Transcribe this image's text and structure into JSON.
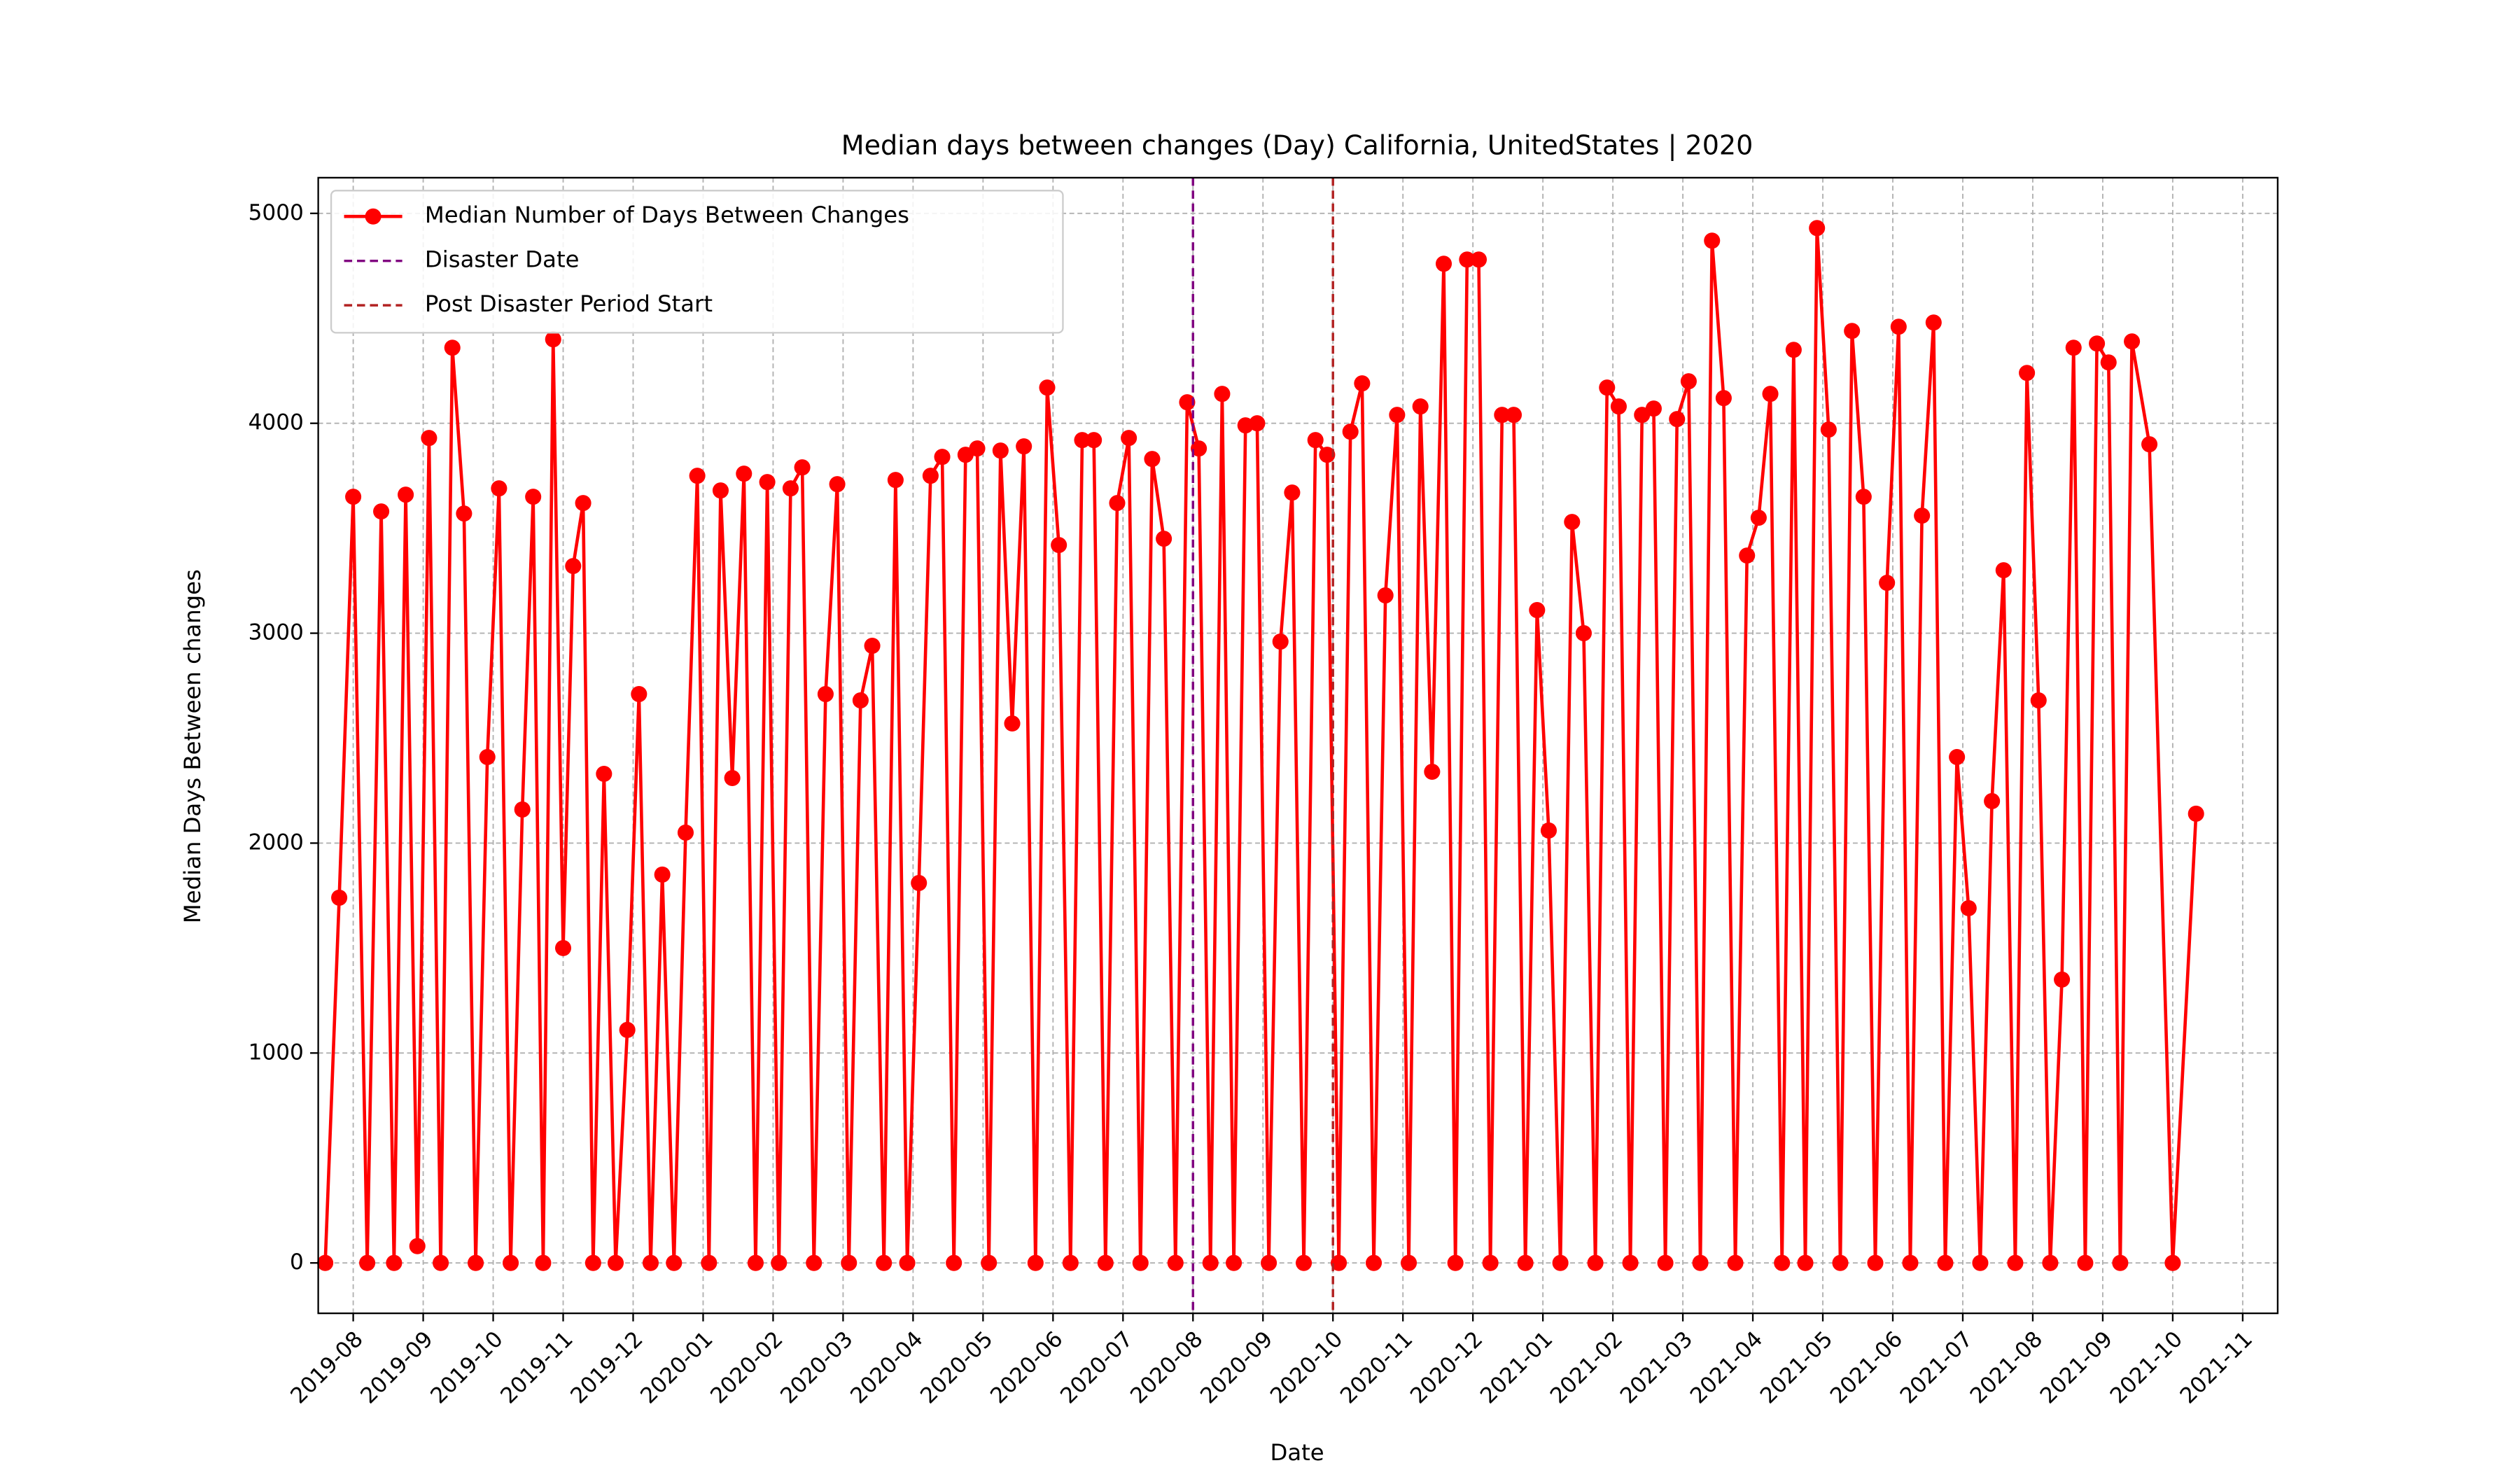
{
  "chart_data": {
    "type": "line",
    "title": "Median days between changes (Day) California, UnitedStates | 2020",
    "x_label": "Date",
    "y_label": "Median Days Between changes",
    "x": [
      "2019-08",
      "2019-08",
      "2019-08",
      "2019-08",
      "2019-08",
      "2019-09",
      "2019-09",
      "2019-09",
      "2019-09",
      "2019-09",
      "2019-09",
      "2019-10",
      "2019-10",
      "2019-10",
      "2019-10",
      "2019-10",
      "2019-10",
      "2019-11",
      "2019-11",
      "2019-11",
      "2019-11",
      "2019-11",
      "2019-11",
      "2019-11",
      "2019-12",
      "2019-12",
      "2019-12",
      "2019-12",
      "2019-12",
      "2019-12",
      "2020-01",
      "2020-01",
      "2020-01",
      "2020-01",
      "2020-01",
      "2020-01",
      "2020-02",
      "2020-02",
      "2020-02",
      "2020-02",
      "2020-02",
      "2020-02",
      "2020-03",
      "2020-03",
      "2020-03",
      "2020-03",
      "2020-03",
      "2020-03",
      "2020-04",
      "2020-04",
      "2020-04",
      "2020-04",
      "2020-04",
      "2020-04",
      "2020-05",
      "2020-05",
      "2020-05",
      "2020-05",
      "2020-05",
      "2020-05",
      "2020-06",
      "2020-06",
      "2020-06",
      "2020-06",
      "2020-06",
      "2020-06",
      "2020-07",
      "2020-07",
      "2020-07",
      "2020-07",
      "2020-07",
      "2020-07",
      "2020-08",
      "2020-08",
      "2020-08",
      "2020-08",
      "2020-08",
      "2020-08",
      "2020-09",
      "2020-09",
      "2020-09",
      "2020-09",
      "2020-09",
      "2020-09",
      "2020-10",
      "2020-10",
      "2020-10",
      "2020-10",
      "2020-10",
      "2020-10",
      "2020-11",
      "2020-11",
      "2020-11",
      "2020-11",
      "2020-11",
      "2020-11",
      "2020-12",
      "2020-12",
      "2020-12",
      "2020-12",
      "2020-12",
      "2020-12",
      "2021-01",
      "2021-01",
      "2021-01",
      "2021-01",
      "2021-01",
      "2021-01",
      "2021-02",
      "2021-02",
      "2021-02",
      "2021-02",
      "2021-02",
      "2021-02",
      "2021-03",
      "2021-03",
      "2021-03",
      "2021-03",
      "2021-03",
      "2021-03",
      "2021-04",
      "2021-04",
      "2021-04",
      "2021-04",
      "2021-04",
      "2021-04",
      "2021-05",
      "2021-05",
      "2021-05",
      "2021-05",
      "2021-05",
      "2021-05",
      "2021-06",
      "2021-06",
      "2021-06",
      "2021-06",
      "2021-06",
      "2021-06",
      "2021-07",
      "2021-07",
      "2021-07",
      "2021-07",
      "2021-07",
      "2021-07",
      "2021-08",
      "2021-08",
      "2021-08",
      "2021-08",
      "2021-08",
      "2021-08",
      "2021-09",
      "2021-09",
      "2021-09",
      "2021-09",
      "2021-09",
      "2021-09",
      "2021-10",
      "2021-10",
      "2021-10"
    ],
    "series": [
      {
        "name": "Median Number of Days Between Changes",
        "color": "#ff0000",
        "values": [
          0,
          1740,
          3650,
          0,
          3580,
          0,
          3660,
          80,
          3930,
          0,
          4360,
          3570,
          0,
          2410,
          3690,
          0,
          2160,
          3650,
          0,
          4400,
          1500,
          3320,
          3620,
          0,
          2330,
          0,
          1110,
          2710,
          0,
          1850,
          0,
          2050,
          3750,
          0,
          3680,
          2310,
          3760,
          0,
          3720,
          0,
          3690,
          3790,
          0,
          2710,
          3710,
          0,
          2680,
          2940,
          0,
          3730,
          0,
          1810,
          3750,
          3840,
          0,
          3850,
          3880,
          0,
          3870,
          2570,
          3890,
          0,
          4170,
          3420,
          0,
          3920,
          3920,
          0,
          3620,
          3930,
          0,
          3830,
          3450,
          0,
          4100,
          3880,
          0,
          4140,
          0,
          3990,
          4000,
          0,
          2960,
          3670,
          0,
          3920,
          3850,
          0,
          3960,
          4190,
          0,
          3180,
          4040,
          0,
          4080,
          2340,
          4760,
          0,
          4780,
          4780,
          0,
          4040,
          4040,
          0,
          3110,
          2060,
          0,
          3530,
          3000,
          0,
          4170,
          4080,
          0,
          4040,
          4070,
          0,
          4020,
          4200,
          0,
          4870,
          4120,
          0,
          3370,
          3550,
          4140,
          0,
          4350,
          0,
          4930,
          3970,
          0,
          4440,
          3650,
          0,
          3240,
          4460,
          0,
          3560,
          4480,
          0,
          2410,
          1690,
          0,
          2200,
          3300,
          0,
          4240,
          2680,
          0,
          1350,
          4360,
          0,
          4380,
          4290,
          0,
          4390,
          3900,
          0,
          2140
        ]
      }
    ],
    "vlines": [
      {
        "name": "Disaster Date",
        "x": "2020-08",
        "color": "#800080"
      },
      {
        "name": "Post Disaster Period Start",
        "x": "2020-10",
        "color": "#b22222"
      }
    ],
    "xlim": [
      "2019-07",
      "2021-11"
    ],
    "xticks": [
      "2019-08",
      "2019-09",
      "2019-10",
      "2019-11",
      "2019-12",
      "2020-01",
      "2020-02",
      "2020-03",
      "2020-04",
      "2020-05",
      "2020-06",
      "2020-07",
      "2020-08",
      "2020-09",
      "2020-10",
      "2020-11",
      "2020-12",
      "2021-01",
      "2021-02",
      "2021-03",
      "2021-04",
      "2021-05",
      "2021-06",
      "2021-07",
      "2021-08",
      "2021-09",
      "2021-10",
      "2021-11"
    ],
    "ylim": [
      -240,
      5170
    ],
    "yticks": [
      0,
      1000,
      2000,
      3000,
      4000,
      5000
    ],
    "grid": true,
    "legend": "upper left"
  }
}
